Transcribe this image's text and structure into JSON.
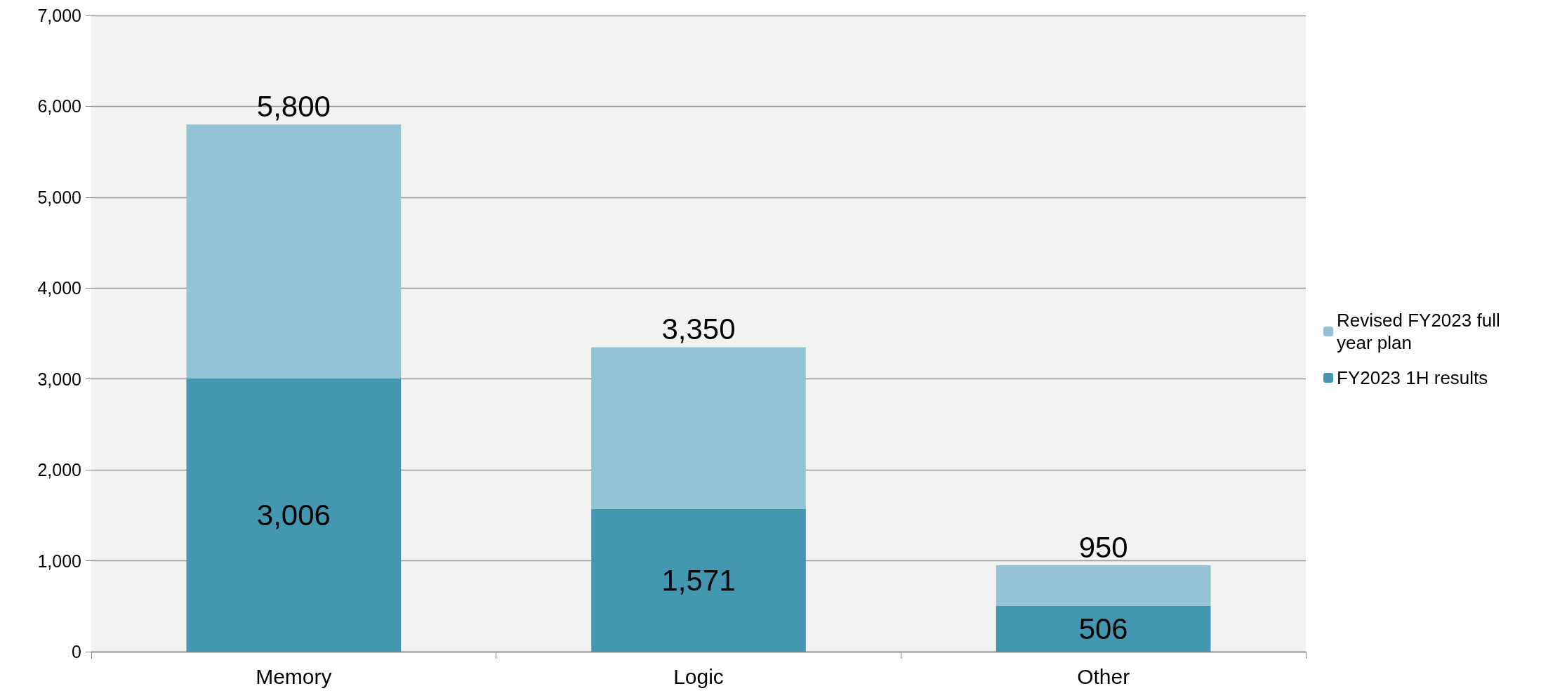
{
  "chart_data": {
    "type": "bar",
    "stacked": true,
    "categories": [
      "Memory",
      "Logic",
      "Other"
    ],
    "series": [
      {
        "name": "FY2023 1H results",
        "color": "#4397b0",
        "values": [
          3006,
          1571,
          506
        ],
        "value_labels": [
          "3,006",
          "1,571",
          "506"
        ]
      },
      {
        "name": "Revised FY2023 full year plan",
        "color": "#93c3d4",
        "values": [
          2794,
          1779,
          444
        ],
        "value_labels": [
          null,
          null,
          null
        ]
      }
    ],
    "totals": [
      "5,800",
      "3,350",
      "950"
    ],
    "ylim": [
      0,
      7000
    ],
    "yticks": [
      0,
      {
        "value": 1000,
        "label": "1,000"
      },
      {
        "value": 2000,
        "label": "2,000"
      },
      {
        "value": 3000,
        "label": "3,000"
      },
      {
        "value": 4000,
        "label": "4,000"
      },
      {
        "value": 5000,
        "label": "5,000"
      },
      {
        "value": 6000,
        "label": "6,000"
      },
      {
        "value": 7000,
        "label": "7,000"
      }
    ],
    "grid": "y",
    "legend": "right"
  }
}
